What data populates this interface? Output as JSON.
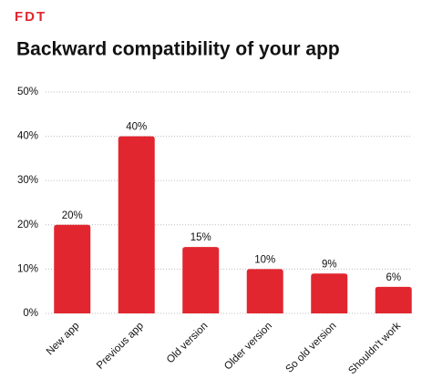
{
  "chart_data": {
    "type": "bar",
    "logo": "FDT",
    "title": "Backward compatibility of your app",
    "categories": [
      "New app",
      "Previous app",
      "Old version",
      "Older version",
      "So old version",
      "Shouldn't work"
    ],
    "values": [
      20,
      40,
      15,
      10,
      9,
      6
    ],
    "value_labels": [
      "20%",
      "40%",
      "15%",
      "10%",
      "9%",
      "6%"
    ],
    "color": "#e1262f",
    "ylim": [
      0,
      50
    ],
    "yticks": [
      {
        "value": 0,
        "label": "0%"
      },
      {
        "value": 10,
        "label": "10%"
      },
      {
        "value": 20,
        "label": "20%"
      },
      {
        "value": 30,
        "label": "30%"
      },
      {
        "value": 40,
        "label": "40%"
      },
      {
        "value": 50,
        "label": "50%"
      }
    ],
    "grid": true
  }
}
